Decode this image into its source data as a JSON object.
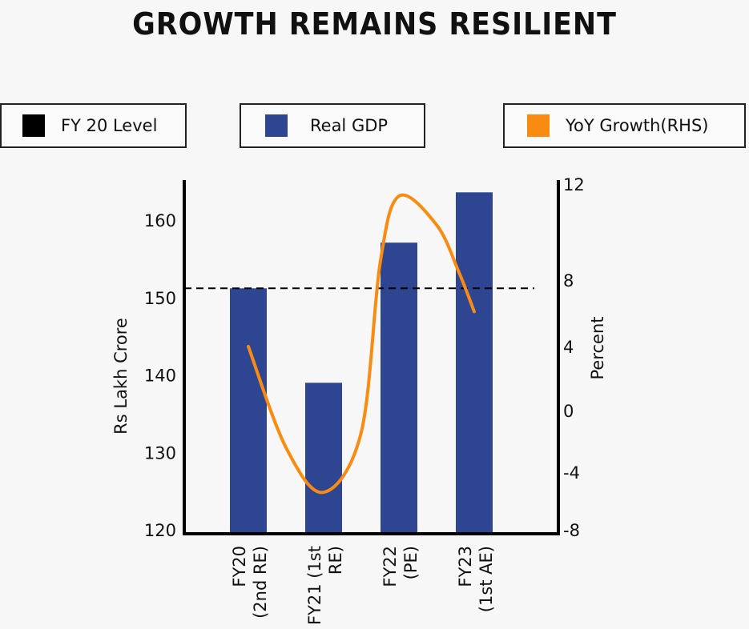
{
  "chart_data": {
    "type": "bar",
    "title": "GROWTH REMAINS RESILIENT",
    "legend": [
      {
        "label": "FY 20 Level",
        "color": "#000000"
      },
      {
        "label": "Real GDP",
        "color": "#2e4591"
      },
      {
        "label": "YoY Growth(RHS)",
        "color": "#f98b11"
      }
    ],
    "legend_placement": "top",
    "categories": [
      "FY20 (2nd RE)",
      "FY21 (1st RE)",
      "FY22 (PE)",
      "FY23 (1st AE)"
    ],
    "category_lines": [
      [
        "FY20",
        "(2nd RE)"
      ],
      [
        "FY21 (1st",
        "RE)"
      ],
      [
        "FY22",
        "(PE)"
      ],
      [
        "FY23",
        "(1st AE)"
      ]
    ],
    "series": [
      {
        "name": "Real GDP",
        "axis": "left",
        "type": "bar",
        "values": [
          151.2,
          139.0,
          157.1,
          163.6
        ],
        "color": "#2e4591"
      },
      {
        "name": "YoY Growth(RHS)",
        "axis": "right",
        "type": "line",
        "color": "#f98b11",
        "x": [
          0,
          0.5,
          1,
          1.5,
          1.75,
          2,
          2.5,
          2.8,
          3
        ],
        "values": [
          4.0,
          -2.4,
          -5.4,
          -1.4,
          8.7,
          11.5,
          10.3,
          8.3,
          6.1
        ]
      },
      {
        "name": "FY 20 Level",
        "axis": "left",
        "type": "hline",
        "value": 151.2,
        "color": "#000000",
        "style": "dashed"
      }
    ],
    "ylabel": "Rs Lakh Crore",
    "ylabel_right": "Percent",
    "yticks": [
      120,
      130,
      140,
      150,
      160
    ],
    "yticks_right": [
      12,
      8,
      4,
      0,
      -4,
      -8
    ],
    "ylim": [
      119.5,
      165
    ],
    "ylim_right": [
      -8,
      12
    ],
    "grid": false
  }
}
